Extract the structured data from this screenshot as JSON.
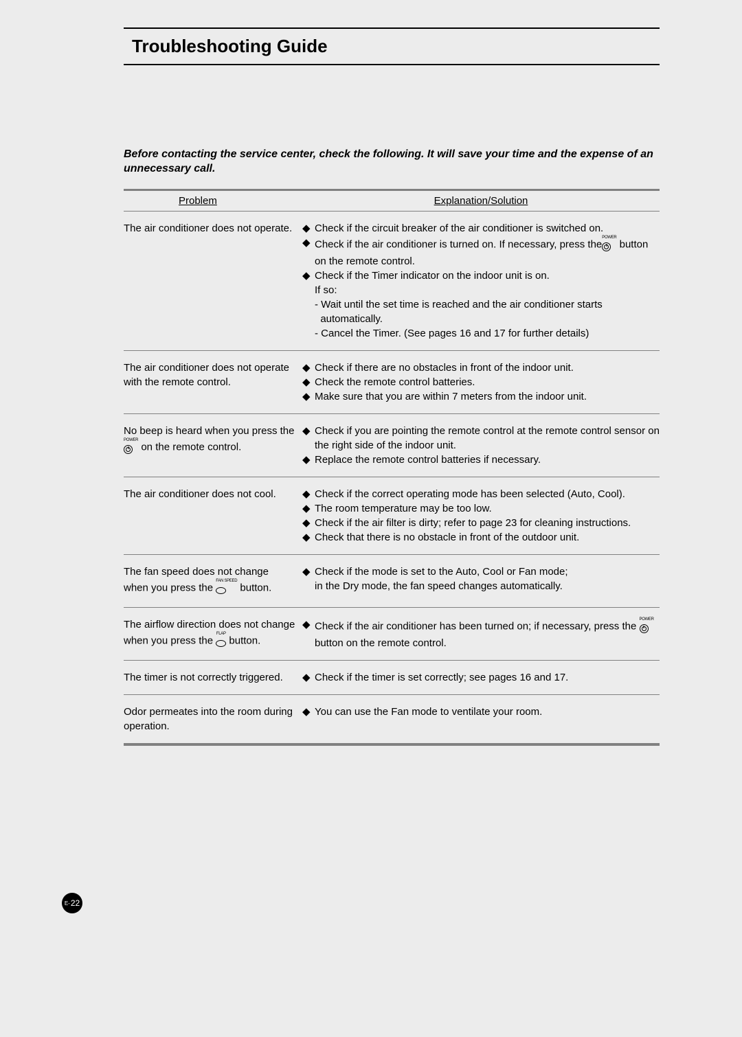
{
  "title": "Troubleshooting Guide",
  "intro": "Before contacting the service center, check the following. It will save your time and the expense of an unnecessary call.",
  "headers": {
    "problem": "Problem",
    "solution": "Explanation/Solution"
  },
  "icons": {
    "power_label": "POWER",
    "fanspeed_label": "FAN SPEED",
    "flap_label": "FLAP"
  },
  "rows": [
    {
      "problem": "The air conditioner does not operate.",
      "solutions": [
        {
          "type": "bullet",
          "text": "Check if the circuit breaker of the air conditioner is switched on."
        },
        {
          "type": "bullet",
          "text_pre": "Check if the air conditioner is turned on. If necessary, press the",
          "icon": "power",
          "text_post": " button on the remote control."
        },
        {
          "type": "bullet",
          "text": "Check if the Timer indicator on the indoor unit is on."
        },
        {
          "type": "sub",
          "text": "If so:"
        },
        {
          "type": "sub",
          "text": "- Wait until the set time is reached and the air conditioner starts"
        },
        {
          "type": "subpad",
          "text": "automatically."
        },
        {
          "type": "sub",
          "text": "- Cancel the Timer. (See pages 16 and 17 for further details)"
        }
      ]
    },
    {
      "problem": "The air conditioner does not operate with the remote control.",
      "solutions": [
        {
          "type": "bullet",
          "text": "Check if there are no obstacles in front of the indoor unit."
        },
        {
          "type": "bullet",
          "text": "Check the remote control batteries."
        },
        {
          "type": "bullet",
          "text": "Make sure that you are within 7 meters from the indoor unit."
        }
      ]
    },
    {
      "problem_parts": {
        "pre": "No beep is heard when you press the ",
        "icon": "power",
        "post": " on the remote control."
      },
      "solutions": [
        {
          "type": "bullet",
          "text": "Check if you are pointing the remote control at the remote control sensor on the right side of the indoor unit."
        },
        {
          "type": "bullet",
          "text": "Replace the remote control batteries if necessary."
        }
      ]
    },
    {
      "problem": "The air conditioner does not cool.",
      "solutions": [
        {
          "type": "bullet",
          "text": "Check if the correct operating mode has been selected (Auto, Cool)."
        },
        {
          "type": "bullet",
          "text": "The room temperature may be too low."
        },
        {
          "type": "bullet",
          "text": "Check if the air filter is dirty; refer to page 23 for cleaning instructions."
        },
        {
          "type": "bullet",
          "text": "Check that there is no obstacle in front of the outdoor unit."
        }
      ]
    },
    {
      "problem_parts": {
        "pre": "The fan speed does not change when you press the ",
        "icon": "fanspeed",
        "post": " button."
      },
      "solutions": [
        {
          "type": "bullet",
          "text": "Check if the mode is set to the Auto, Cool or Fan mode;"
        },
        {
          "type": "sub2",
          "text": "in the Dry mode, the fan speed changes automatically."
        }
      ]
    },
    {
      "problem_parts": {
        "pre": "The airflow direction does not change when you press the ",
        "icon": "flap",
        "post": " button."
      },
      "solutions": [
        {
          "type": "bullet",
          "text_pre": "Check if the air conditioner has been turned on; if necessary, press the ",
          "icon": "power",
          "text_post": " button on the remote control."
        }
      ]
    },
    {
      "problem": "The timer is not correctly triggered.",
      "solutions": [
        {
          "type": "bullet",
          "text": "Check if the timer is set correctly; see pages 16 and 17."
        }
      ]
    },
    {
      "problem": "Odor permeates into the room during operation.",
      "solutions": [
        {
          "type": "bullet",
          "text": "You can use the Fan mode to ventilate your room."
        }
      ]
    }
  ],
  "page_number": {
    "prefix": "E-",
    "num": "22"
  }
}
